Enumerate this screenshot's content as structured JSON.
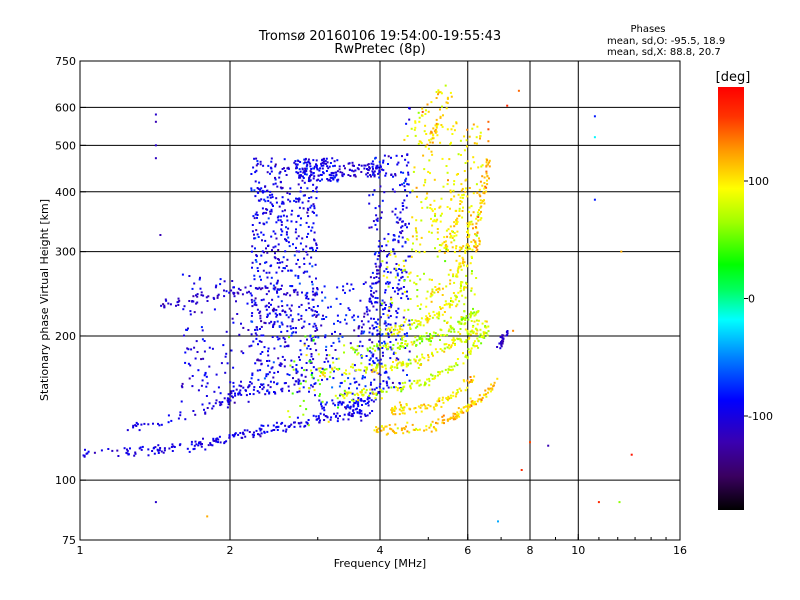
{
  "header": {
    "title": "Tromsø 20160106 19:54:00-19:55:43",
    "subtitle": "RwPretec (8p)"
  },
  "stats": {
    "heading": "Phases",
    "line_o": "mean, sd,O: -95.5, 18.9",
    "line_x": "mean, sd,X: 88.8, 20.7"
  },
  "chart_data": {
    "type": "scatter",
    "title": "Tromsø 20160106 19:54:00-19:55:43",
    "subtitle": "RwPretec (8p)",
    "xlabel": "Frequency [MHz]",
    "ylabel": "Stationary phase Virtual Height [km]",
    "x_scale": "log",
    "y_scale": "log",
    "xlim": [
      1,
      16
    ],
    "ylim": [
      75,
      750
    ],
    "x_ticks": [
      1,
      2,
      4,
      6,
      8,
      10,
      16
    ],
    "x_tick_labels": [
      "1",
      "2",
      "4",
      "6",
      "8",
      "10",
      "16"
    ],
    "x_gridlines": [
      2,
      4,
      6,
      8,
      10
    ],
    "y_ticks": [
      75,
      100,
      200,
      300,
      400,
      500,
      600,
      750
    ],
    "y_tick_labels": [
      "75",
      "100",
      "200",
      "300",
      "400",
      "500",
      "600",
      "750"
    ],
    "y_gridlines": [
      100,
      200,
      300,
      400,
      500,
      600
    ],
    "grid": true,
    "colorbar": {
      "label": "[deg]",
      "range": [
        -180,
        180
      ],
      "ticks": [
        100,
        0,
        -100
      ],
      "tick_labels": [
        "100",
        "0",
        "-100"
      ]
    },
    "series": [
      {
        "traces": [
          {
            "f": [
              1.0,
              1.3,
              1.6,
              1.9,
              2.2,
              2.6,
              3.0,
              3.4,
              3.8
            ],
            "h": [
              113,
              115,
              117,
              121,
              126,
              130,
              134,
              137,
              138
            ],
            "phase": -100,
            "sd": 12,
            "n": 220
          },
          {
            "f": [
              1.45,
              1.6,
              1.8,
              2.0,
              2.3,
              2.6,
              3.0
            ],
            "h": [
              230,
              238,
              240,
              245,
              250,
              248,
              245
            ],
            "phase": -110,
            "sd": 12,
            "n": 70
          },
          {
            "f": [
              1.2,
              1.5,
              1.8,
              2.0,
              2.2
            ],
            "h": [
              128,
              133,
              140,
              148,
              160
            ],
            "phase": -100,
            "sd": 12,
            "n": 60
          },
          {
            "f": [
              3.0,
              3.3,
              3.6,
              3.9
            ],
            "h": [
              142,
              144,
              145,
              146
            ],
            "phase": -90,
            "sd": 15,
            "n": 60
          },
          {
            "f": [
              3.6,
              3.8,
              3.95,
              4.05
            ],
            "h": [
              200,
              230,
              265,
              300
            ],
            "phase": -110,
            "sd": 12,
            "n": 35
          },
          {
            "f": [
              4.3,
              4.4,
              4.5,
              4.6
            ],
            "h": [
              200,
              300,
              420,
              600
            ],
            "phase": -90,
            "sd": 18,
            "n": 40
          },
          {
            "f": [
              6.9,
              7.05,
              7.2
            ],
            "h": [
              190,
              196,
              203
            ],
            "phase": -110,
            "sd": 10,
            "n": 25
          }
        ],
        "bands": [
          {
            "f": [
              2.2,
              3.0
            ],
            "h": [
              150,
              470
            ],
            "phase": -95,
            "sd": 20,
            "n": 650
          },
          {
            "f": [
              2.7,
              3.3
            ],
            "h": [
              420,
              470
            ],
            "phase": -95,
            "sd": 15,
            "n": 120
          },
          {
            "f": [
              3.3,
              4.0
            ],
            "h": [
              430,
              460
            ],
            "phase": -105,
            "sd": 12,
            "n": 60
          },
          {
            "f": [
              1.6,
              2.2
            ],
            "h": [
              140,
              270
            ],
            "phase": -100,
            "sd": 15,
            "n": 120
          },
          {
            "f": [
              3.8,
              4.6
            ],
            "h": [
              150,
              480
            ],
            "phase": -95,
            "sd": 18,
            "n": 260
          },
          {
            "f": [
              3.0,
              4.2
            ],
            "h": [
              150,
              260
            ],
            "phase": -85,
            "sd": 20,
            "n": 160
          }
        ],
        "points": [
          {
            "f": 1.42,
            "h": 580,
            "phase": -110
          },
          {
            "f": 1.42,
            "h": 560,
            "phase": -120
          },
          {
            "f": 1.42,
            "h": 500,
            "phase": -110
          },
          {
            "f": 1.42,
            "h": 470,
            "phase": -115
          },
          {
            "f": 1.45,
            "h": 325,
            "phase": -120
          },
          {
            "f": 1.42,
            "h": 90,
            "phase": -110
          },
          {
            "f": 10.8,
            "h": 575,
            "phase": -80
          },
          {
            "f": 10.8,
            "h": 520,
            "phase": -20
          },
          {
            "f": 10.8,
            "h": 385,
            "phase": -80
          },
          {
            "f": 8.7,
            "h": 118,
            "phase": -120
          },
          {
            "f": 6.9,
            "h": 82,
            "phase": -40
          },
          {
            "f": 8.0,
            "h": 120,
            "phase": 150
          }
        ]
      },
      {
        "traces": [
          {
            "f": [
              3.0,
              3.6,
              4.2,
              4.8,
              5.4,
              6.0,
              6.5
            ],
            "h": [
              168,
              170,
              172,
              178,
              188,
              200,
              215
            ],
            "phase": 90,
            "sd": 20,
            "n": 150
          },
          {
            "f": [
              3.2,
              3.8,
              4.4,
              5.0,
              5.6,
              6.2,
              6.6
            ],
            "h": [
              150,
              152,
              156,
              162,
              172,
              190,
              210
            ],
            "phase": 80,
            "sd": 20,
            "n": 140
          },
          {
            "f": [
              3.9,
              4.3,
              4.8,
              5.3,
              5.8,
              6.3,
              6.9
            ],
            "h": [
              128,
              127,
              128,
              132,
              138,
              148,
              160
            ],
            "phase": 110,
            "sd": 20,
            "n": 140
          },
          {
            "f": [
              4.2,
              4.7,
              5.2,
              5.7,
              6.2
            ],
            "h": [
              140,
              141,
              145,
              152,
              165
            ],
            "phase": 105,
            "sd": 18,
            "n": 90
          },
          {
            "f": [
              3.4,
              4.0,
              4.6,
              5.2,
              5.8,
              6.3
            ],
            "h": [
              185,
              188,
              193,
              200,
              212,
              228
            ],
            "phase": 70,
            "sd": 20,
            "n": 120
          },
          {
            "f": [
              4.0,
              4.6,
              5.2,
              5.7,
              6.0
            ],
            "h": [
              205,
              210,
              220,
              240,
              265
            ],
            "phase": 90,
            "sd": 18,
            "n": 90
          },
          {
            "f": [
              5.0,
              5.4,
              5.8,
              6.0,
              6.1
            ],
            "h": [
              240,
              255,
              280,
              320,
              360
            ],
            "phase": 100,
            "sd": 18,
            "n": 60
          },
          {
            "f": [
              5.4,
              5.7,
              5.9,
              6.0
            ],
            "h": [
              300,
              340,
              400,
              470
            ],
            "phase": 100,
            "sd": 18,
            "n": 50
          },
          {
            "f": [
              6.2,
              6.35,
              6.5,
              6.6
            ],
            "h": [
              300,
              360,
              420,
              480
            ],
            "phase": 110,
            "sd": 20,
            "n": 60
          },
          {
            "f": [
              4.9,
              5.1,
              5.3,
              5.6
            ],
            "h": [
              450,
              520,
              580,
              640
            ],
            "phase": 110,
            "sd": 20,
            "n": 35
          },
          {
            "f": [
              4.5,
              4.8,
              5.1,
              5.4
            ],
            "h": [
              510,
              570,
              620,
              660
            ],
            "phase": 100,
            "sd": 25,
            "n": 25
          }
        ],
        "bands": [
          {
            "f": [
              4.6,
              6.4
            ],
            "h": [
              300,
              560
            ],
            "phase": 95,
            "sd": 20,
            "n": 180
          },
          {
            "f": [
              4.0,
              6.3
            ],
            "h": [
              190,
              320
            ],
            "phase": 85,
            "sd": 22,
            "n": 150
          },
          {
            "f": [
              2.6,
              3.4
            ],
            "h": [
              130,
              200
            ],
            "phase": 60,
            "sd": 30,
            "n": 50
          }
        ],
        "points": [
          {
            "f": 6.6,
            "h": 560,
            "phase": 140
          },
          {
            "f": 6.6,
            "h": 540,
            "phase": 150
          },
          {
            "f": 6.6,
            "h": 510,
            "phase": 130
          },
          {
            "f": 7.2,
            "h": 605,
            "phase": 160
          },
          {
            "f": 7.6,
            "h": 650,
            "phase": 140
          },
          {
            "f": 12.2,
            "h": 300,
            "phase": 120
          },
          {
            "f": 12.1,
            "h": 90,
            "phase": 60
          },
          {
            "f": 11.0,
            "h": 90,
            "phase": 160
          },
          {
            "f": 12.8,
            "h": 113,
            "phase": 170
          },
          {
            "f": 7.4,
            "h": 205,
            "phase": 130
          },
          {
            "f": 1.8,
            "h": 84,
            "phase": 120
          },
          {
            "f": 7.7,
            "h": 105,
            "phase": 160
          }
        ]
      }
    ]
  }
}
